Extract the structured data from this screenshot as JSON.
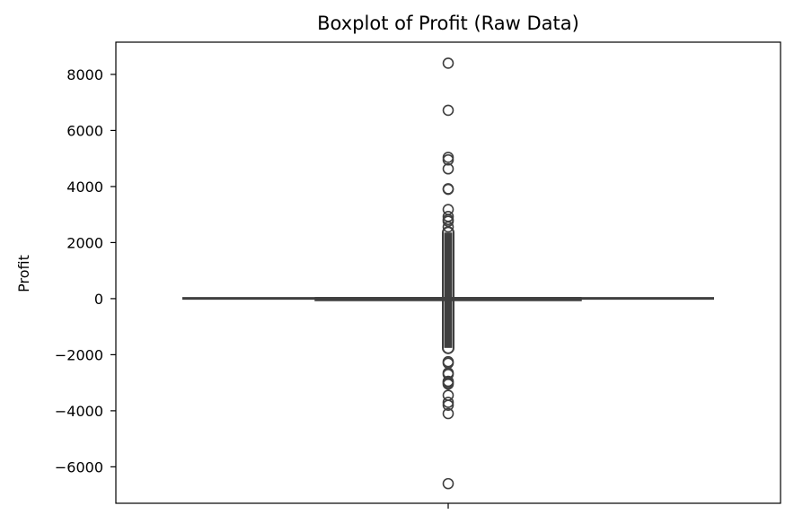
{
  "chart_data": {
    "type": "boxplot",
    "title": "Boxplot of Profit (Raw Data)",
    "xlabel": "",
    "ylabel": "Profit",
    "ylim": [
      -7300,
      9150
    ],
    "yticks": [
      -6000,
      -4000,
      -2000,
      0,
      2000,
      4000,
      6000,
      8000
    ],
    "ytick_labels": [
      "−6000",
      "−4000",
      "−2000",
      "0",
      "2000",
      "4000",
      "6000",
      "8000"
    ],
    "grid": false,
    "box": {
      "whisker_low": -39.7,
      "q1": 1.7,
      "median": 8.7,
      "q3": 29.4,
      "whisker_high": 70.7
    },
    "outlier_dense_range": [
      -1950,
      2550
    ],
    "outliers": [
      8400,
      6720,
      5040,
      4950,
      4630,
      3920,
      3900,
      3180,
      2930,
      2820,
      2760,
      2560,
      -2250,
      -2300,
      -2650,
      -2700,
      -2950,
      -3000,
      -3050,
      -3450,
      -3700,
      -3800,
      -4100,
      -6600
    ],
    "colors": {
      "box": "#3f3f3f",
      "axis": "#000000",
      "background": "#ffffff"
    }
  }
}
